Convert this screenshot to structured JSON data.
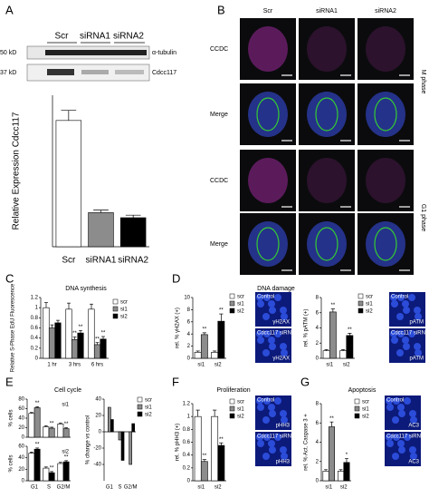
{
  "panels": [
    "A",
    "B",
    "C",
    "D",
    "E",
    "F",
    "G"
  ],
  "panel_titles": {
    "C": "DNA synthesis",
    "D": "DNA damage",
    "E": "Cell cycle",
    "F": "Proliferation",
    "G": "Apoptosis"
  },
  "blot": {
    "lanes": [
      "Scr",
      "siRNA1",
      "siRNA2"
    ],
    "markers": [
      "50 kD",
      "37 kD"
    ],
    "bands": [
      "α-tubulin",
      "Cdcc117"
    ]
  },
  "microscopy": {
    "columns": [
      "Scr",
      "siRNA1",
      "siRNA2"
    ],
    "rows": [
      "CCDC",
      "Merge",
      "CCDC",
      "Merge"
    ],
    "phases": [
      "M phase",
      "G1 phase"
    ]
  },
  "insets": [
    {
      "top": "Control",
      "top_stain": "γH2AX",
      "bottom": "Cdcc117 siRNA",
      "bottom_stain": "γH2AX"
    },
    {
      "top": "Control",
      "top_stain": "pATM",
      "bottom": "Cdcc117 siRNA",
      "bottom_stain": "pATM"
    },
    {
      "top": "Control",
      "top_stain": "pHH3",
      "bottom": "Cdcc117 siRNA",
      "bottom_stain": "pHH3"
    },
    {
      "top": "Control",
      "top_stain": "AC3",
      "bottom": "Cdcc117 siRNA",
      "bottom_stain": "AC3"
    }
  ],
  "chart_data": [
    {
      "type": "bar",
      "y_label": "Relative Expression Cdcc117",
      "ylim": [
        0,
        1.2
      ],
      "categories": [
        "Scr",
        "siRNA1",
        "siRNA2"
      ],
      "values": [
        1,
        0.27,
        0.23
      ],
      "errors": [
        0.08,
        0.02,
        0.02
      ],
      "colors": [
        "#ffffff",
        "#8c8c8c",
        "#000000"
      ]
    },
    {
      "type": "bar",
      "y_label": "Relative S-Phase EdU Fluorescence",
      "ylim": [
        0,
        1.2
      ],
      "yticks": [
        0,
        0.2,
        0.4,
        0.6,
        0.8,
        1,
        1.2
      ],
      "categories": [
        "1 hr",
        "3 hrs",
        "6 hrs"
      ],
      "legend": true,
      "series": [
        {
          "name": "scr",
          "color": "#ffffff",
          "values": [
            1,
            0.97,
            0.97
          ],
          "errors": [
            0.1,
            0.12,
            0.1
          ]
        },
        {
          "name": "si1",
          "color": "#8c8c8c",
          "values": [
            0.6,
            0.37,
            0.27
          ],
          "errors": [
            0.06,
            0.05,
            0.04
          ],
          "stars": [
            null,
            "**",
            "**"
          ]
        },
        {
          "name": "si2",
          "color": "#000000",
          "values": [
            0.7,
            0.5,
            0.38
          ],
          "errors": [
            0.05,
            0.05,
            0.05
          ],
          "stars": [
            null,
            "**",
            "**"
          ]
        }
      ]
    },
    {
      "type": "bar",
      "y_label": "rel. % γH2AX (+)",
      "ylim": [
        0,
        10
      ],
      "yticks": [
        0,
        2,
        4,
        6,
        8,
        10
      ],
      "categories": [
        "si1",
        "si2"
      ],
      "legend": true,
      "series": [
        {
          "name": "scr",
          "color": "#ffffff",
          "values": [
            1,
            1
          ],
          "errors": [
            0.2,
            0.2
          ]
        },
        {
          "name": "si1",
          "color": "#8c8c8c",
          "values": [
            3.9,
            null
          ],
          "errors": [
            0.3,
            null
          ],
          "stars": [
            "**",
            null
          ]
        },
        {
          "name": "si2",
          "color": "#000000",
          "values": [
            null,
            6.1
          ],
          "errors": [
            null,
            1.2
          ],
          "stars": [
            null,
            "**"
          ]
        }
      ]
    },
    {
      "type": "bar",
      "y_label": "rel. % pATM (+)",
      "ylim": [
        0,
        8
      ],
      "yticks": [
        0,
        2,
        4,
        6,
        8
      ],
      "categories": [
        "si1",
        "si2"
      ],
      "legend": true,
      "series": [
        {
          "name": "scr",
          "color": "#ffffff",
          "values": [
            1,
            1
          ],
          "errors": [
            0.15,
            0.15
          ]
        },
        {
          "name": "si1",
          "color": "#8c8c8c",
          "values": [
            6.1,
            null
          ],
          "errors": [
            0.4,
            null
          ],
          "stars": [
            "**",
            null
          ]
        },
        {
          "name": "si2",
          "color": "#000000",
          "values": [
            null,
            3
          ],
          "errors": [
            null,
            0.3
          ],
          "stars": [
            null,
            "**"
          ]
        }
      ]
    },
    {
      "type": "bar",
      "y_label": "% cells",
      "label": "si1",
      "ylim": [
        0,
        80
      ],
      "yticks": [
        0,
        20,
        40,
        60,
        80
      ],
      "categories": [
        null,
        null,
        null
      ],
      "series": [
        {
          "color": "#ffffff",
          "values": [
            50,
            22,
            28
          ],
          "errors": [
            2,
            2,
            2
          ]
        },
        {
          "color": "#8c8c8c",
          "values": [
            62,
            19,
            18
          ],
          "errors": [
            2,
            2,
            2
          ],
          "stars": [
            "**",
            "**",
            "**"
          ]
        }
      ]
    },
    {
      "type": "bar",
      "y_label": "% cells",
      "label": "si2",
      "ylim": [
        0,
        60
      ],
      "yticks": [
        0,
        20,
        40,
        60
      ],
      "categories": [
        "G1",
        "S",
        "G2/M"
      ],
      "series": [
        {
          "color": "#ffffff",
          "values": [
            48,
            22,
            30
          ],
          "errors": [
            2,
            2,
            2
          ]
        },
        {
          "color": "#000000",
          "values": [
            55,
            14,
            33
          ],
          "errors": [
            2,
            2,
            2
          ],
          "stars": [
            "**",
            "**",
            "**"
          ]
        }
      ]
    },
    {
      "type": "bar",
      "y_label": "% change vs control",
      "ylim": [
        -60,
        40
      ],
      "yticks": [
        -40,
        -20,
        0,
        20,
        40
      ],
      "categories": [
        "G1",
        "S",
        "G2/M"
      ],
      "legend": true,
      "series": [
        {
          "name": "scr",
          "color": "#ffffff",
          "values": [
            0,
            0,
            0
          ]
        },
        {
          "name": "si1",
          "color": "#8c8c8c",
          "values": [
            30,
            -10,
            -40
          ]
        },
        {
          "name": "si2",
          "color": "#000000",
          "values": [
            15,
            -35,
            10
          ]
        }
      ]
    },
    {
      "type": "bar",
      "y_label": "rel. % pHH3 (+)",
      "ylim": [
        0,
        1.2
      ],
      "yticks": [
        0,
        0.2,
        0.4,
        0.6,
        0.8,
        1,
        1.2
      ],
      "categories": [
        "si1",
        "si2"
      ],
      "legend": true,
      "series": [
        {
          "name": "scr",
          "color": "#ffffff",
          "values": [
            1,
            1
          ],
          "errors": [
            0.1,
            0.1
          ]
        },
        {
          "name": "si1",
          "color": "#8c8c8c",
          "values": [
            0.3,
            null
          ],
          "errors": [
            0.03,
            null
          ],
          "stars": [
            "**",
            null
          ]
        },
        {
          "name": "si2",
          "color": "#000000",
          "values": [
            null,
            0.55
          ],
          "errors": [
            null,
            0.04
          ],
          "stars": [
            null,
            "**"
          ]
        }
      ]
    },
    {
      "type": "bar",
      "y_label": "rel. % Act. Caspase 3 +",
      "ylim": [
        0,
        8
      ],
      "yticks": [
        0,
        2,
        4,
        6,
        8
      ],
      "categories": [
        "si1",
        "si2"
      ],
      "legend": true,
      "series": [
        {
          "name": "scr",
          "color": "#ffffff",
          "values": [
            1,
            1
          ],
          "errors": [
            0.15,
            0.15
          ]
        },
        {
          "name": "si1",
          "color": "#8c8c8c",
          "values": [
            5.6,
            null
          ],
          "errors": [
            0.5,
            null
          ],
          "stars": [
            "**",
            null
          ]
        },
        {
          "name": "si2",
          "color": "#000000",
          "values": [
            null,
            1.9
          ],
          "errors": [
            null,
            0.4
          ],
          "stars": [
            null,
            "*"
          ]
        }
      ]
    }
  ]
}
